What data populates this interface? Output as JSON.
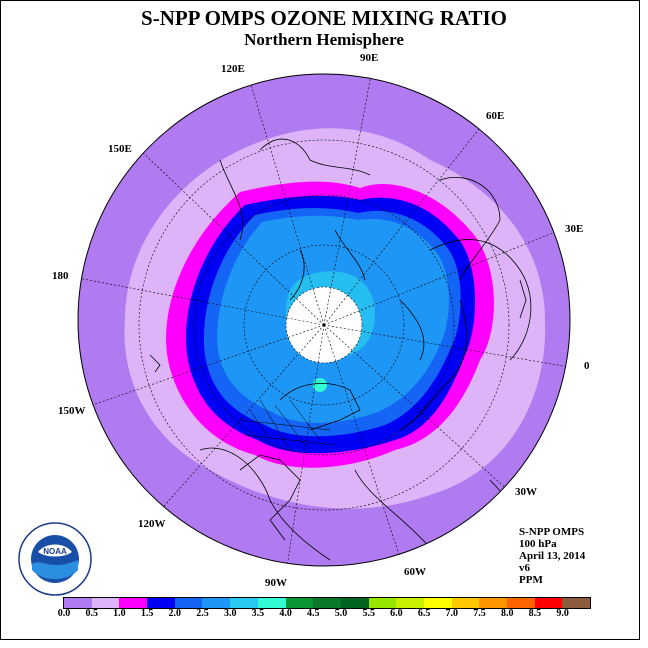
{
  "title": "S-NPP OMPS OZONE MIXING RATIO",
  "subtitle": "Northern Hemisphere",
  "longitudes": {
    "lon_90e": "90E",
    "lon_120e": "120E",
    "lon_60e": "60E",
    "lon_150e": "150E",
    "lon_30e": "30E",
    "lon_180": "180",
    "lon_0": "0",
    "lon_150w": "150W",
    "lon_30w": "30W",
    "lon_120w": "120W",
    "lon_60w": "60W",
    "lon_90w": "90W"
  },
  "info": {
    "instrument": "S-NPP OMPS",
    "level": "100 hPa",
    "date": "April 13, 2014",
    "version": "v6",
    "units": "PPM"
  },
  "logo": {
    "text": "NOAA",
    "ring_text": "NATIONAL OCEANIC AND ATMOSPHERIC ADMINISTRATION · U.S. DEPARTMENT OF COMMERCE"
  },
  "colorbar": {
    "colors": [
      "#b07af0",
      "#dcb4f7",
      "#ff00ff",
      "#0000f5",
      "#1464f5",
      "#1e96f5",
      "#28c8f0",
      "#32fad2",
      "#0a9632",
      "#0a7828",
      "#006420",
      "#96e600",
      "#c8f000",
      "#ffff00",
      "#ffc800",
      "#ff9600",
      "#ff6400",
      "#ff0000",
      "#8c5a3c"
    ],
    "ticks": [
      "0.0",
      "0.5",
      "1.0",
      "1.5",
      "2.0",
      "2.5",
      "3.0",
      "3.5",
      "4.0",
      "4.5",
      "5.0",
      "5.5",
      "6.0",
      "6.5",
      "7.0",
      "7.5",
      "8.0",
      "8.5",
      "9.0"
    ]
  }
}
